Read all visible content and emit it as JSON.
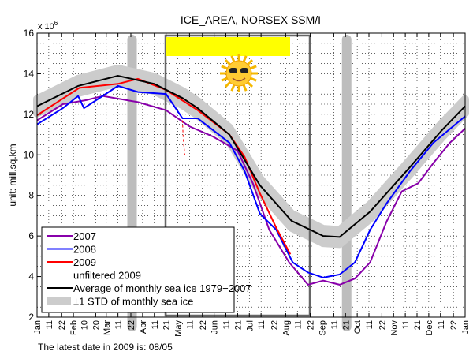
{
  "chart_data": {
    "type": "line",
    "title": "ICE_AREA, NORSEX SSM/I",
    "ylabel": "unit: mill.sq.km",
    "y_multiplier": "x 10",
    "y_multiplier_exp": "6",
    "ylim": [
      2,
      16
    ],
    "xlim": [
      0,
      365
    ],
    "yticks": [
      2,
      4,
      6,
      8,
      10,
      12,
      14,
      16
    ],
    "xticks": [
      {
        "d": 0,
        "l": "Jan"
      },
      {
        "d": 10,
        "l": "11"
      },
      {
        "d": 21,
        "l": "22"
      },
      {
        "d": 31,
        "l": "Feb"
      },
      {
        "d": 40,
        "l": "10"
      },
      {
        "d": 50,
        "l": "20"
      },
      {
        "d": 59,
        "l": "Mar"
      },
      {
        "d": 69,
        "l": "11"
      },
      {
        "d": 80,
        "l": "22"
      },
      {
        "d": 90,
        "l": "Apr"
      },
      {
        "d": 100,
        "l": "11"
      },
      {
        "d": 110,
        "l": "21"
      },
      {
        "d": 120,
        "l": "May"
      },
      {
        "d": 130,
        "l": "11"
      },
      {
        "d": 141,
        "l": "22"
      },
      {
        "d": 151,
        "l": "Jun"
      },
      {
        "d": 161,
        "l": "11"
      },
      {
        "d": 171,
        "l": "21"
      },
      {
        "d": 181,
        "l": "Jul"
      },
      {
        "d": 191,
        "l": "11"
      },
      {
        "d": 202,
        "l": "22"
      },
      {
        "d": 212,
        "l": "Aug"
      },
      {
        "d": 222,
        "l": "11"
      },
      {
        "d": 233,
        "l": "22"
      },
      {
        "d": 243,
        "l": "Sep"
      },
      {
        "d": 253,
        "l": "11"
      },
      {
        "d": 263,
        "l": "21"
      },
      {
        "d": 273,
        "l": "Oct"
      },
      {
        "d": 283,
        "l": "11"
      },
      {
        "d": 294,
        "l": "22"
      },
      {
        "d": 304,
        "l": "Nov"
      },
      {
        "d": 314,
        "l": "11"
      },
      {
        "d": 324,
        "l": "21"
      },
      {
        "d": 334,
        "l": "Dec"
      },
      {
        "d": 344,
        "l": "11"
      },
      {
        "d": 355,
        "l": "22"
      },
      {
        "d": 365,
        "l": "Jan"
      }
    ],
    "grid": true,
    "series": [
      {
        "name": "2007",
        "color": "#8800aa",
        "x": [
          0,
          22,
          42,
          56,
          86,
          110,
          130,
          150,
          171,
          184,
          198,
          215,
          231,
          244,
          258,
          271,
          284,
          298,
          311,
          325,
          338,
          352,
          365
        ],
        "y": [
          11.7,
          12.5,
          12.7,
          12.9,
          12.6,
          12.2,
          11.4,
          10.9,
          10.2,
          8.6,
          6.3,
          4.7,
          3.6,
          3.8,
          3.6,
          3.9,
          4.7,
          6.7,
          8.2,
          8.6,
          9.6,
          10.6,
          11.3
        ]
      },
      {
        "name": "2008",
        "color": "#0000ff",
        "x": [
          0,
          22,
          35,
          40,
          48,
          69,
          86,
          110,
          124,
          137,
          164,
          177,
          190,
          204,
          218,
          231,
          244,
          258,
          271,
          284,
          298,
          318,
          338,
          365
        ],
        "y": [
          11.5,
          12.3,
          12.9,
          12.3,
          12.6,
          13.4,
          13.1,
          13,
          11.8,
          11.8,
          10.6,
          9.2,
          7.1,
          6.3,
          4.7,
          4.2,
          3.95,
          4.1,
          4.7,
          6.3,
          7.6,
          9.2,
          10.6,
          11.9
        ]
      },
      {
        "name": "2009",
        "color": "#ff0000",
        "x": [
          0,
          36,
          69,
          86,
          110,
          137,
          164,
          177,
          190,
          204,
          216
        ],
        "y": [
          11.95,
          13.3,
          13.5,
          13.75,
          13.2,
          12.2,
          11.0,
          9.9,
          8.1,
          6.4,
          5.1
        ]
      },
      {
        "name": "unfiltered 2009",
        "color": "#ff0000",
        "dashed": true,
        "x": [
          124,
          124.5,
          125,
          125.5,
          126
        ],
        "y": [
          11.7,
          11.0,
          10.5,
          10.3,
          10.0
        ]
      },
      {
        "name": "Average of monthly sea ice 1979−2007",
        "color": "#000000",
        "x": [
          0,
          35,
          69,
          100,
          124,
          137,
          164,
          190,
          217,
          244,
          258,
          284,
          318,
          345,
          365
        ],
        "y": [
          12.4,
          13.4,
          13.9,
          13.5,
          12.8,
          12.3,
          11.0,
          8.5,
          6.75,
          6.0,
          5.95,
          7.2,
          9.4,
          11.2,
          12.4
        ]
      }
    ],
    "std_band": {
      "name": "±1 STD of monthly sea ice",
      "color": "#cccccc",
      "half_width": 0.35
    },
    "markers": [
      {
        "day": 81,
        "label": "22"
      },
      {
        "day": 264,
        "label": "21"
      }
    ],
    "annotation": "The latest date in 2009 is: 08/05",
    "legend_placement": "bottom-left"
  }
}
